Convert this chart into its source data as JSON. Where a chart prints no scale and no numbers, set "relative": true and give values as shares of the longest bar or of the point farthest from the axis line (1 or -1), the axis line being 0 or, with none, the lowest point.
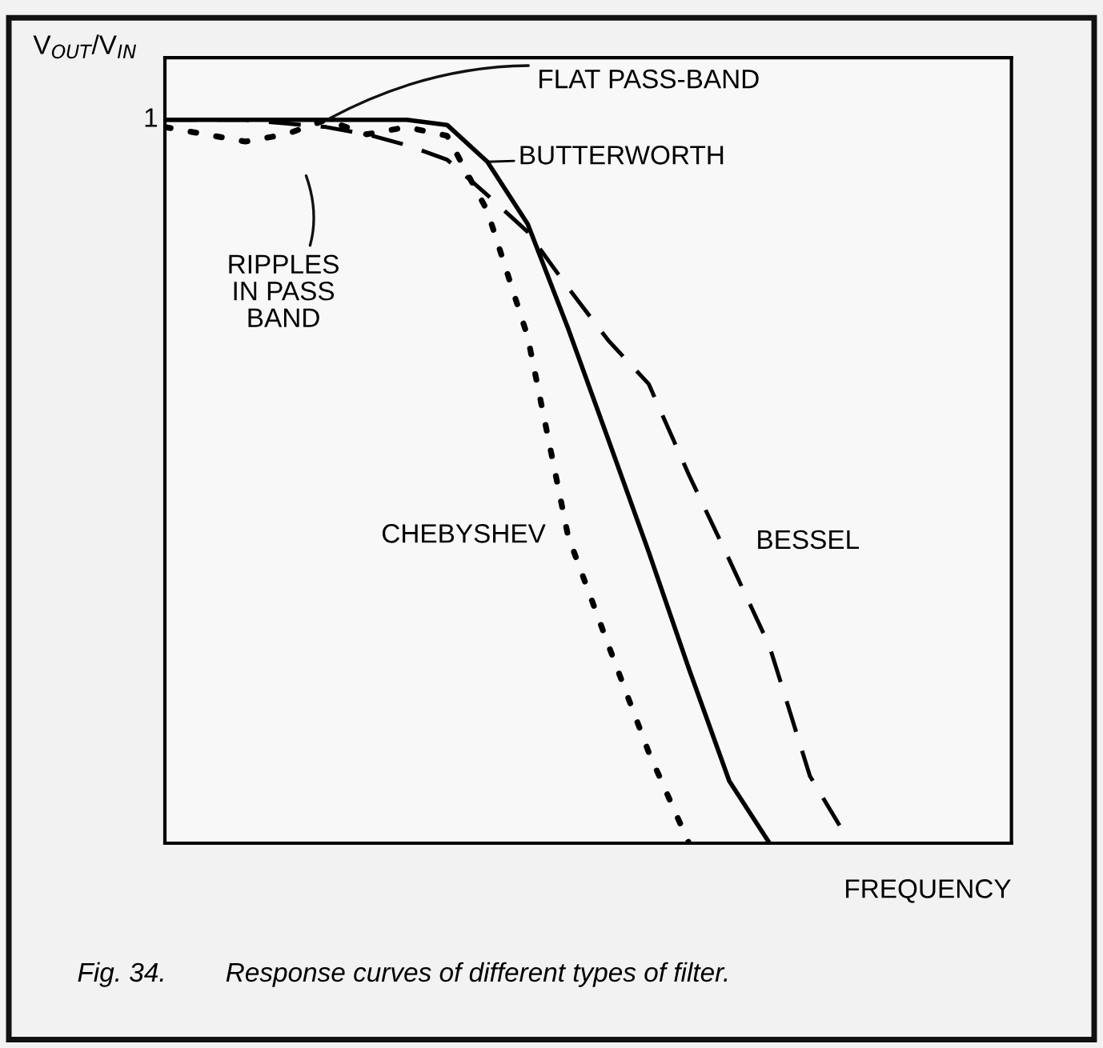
{
  "chart_data": {
    "type": "line",
    "relative": true,
    "xlabel": "FREQUENCY",
    "ylabel": "V$_{OUT}$/V$_{IN}$",
    "categories": [
      null,
      null,
      null,
      null,
      null,
      null,
      null,
      null,
      null,
      null,
      null,
      null,
      null,
      null,
      null,
      null,
      null,
      null,
      null,
      null,
      null,
      null
    ],
    "series": [
      {
        "name": "BUTTERWORTH",
        "color": "#000000",
        "line_style": "solid",
        "values": [
          1,
          1,
          1,
          1,
          1,
          1,
          1,
          0.993,
          0.942,
          0.856,
          0.712,
          0.558,
          0.403,
          0.241,
          0.086,
          0,
          null,
          null,
          null,
          null,
          null,
          null
        ]
      },
      {
        "name": "CHEBYSHEV",
        "color": "#000000",
        "line_style": "dotted",
        "values": [
          0.99,
          0.98,
          0.97,
          0.98,
          1,
          0.98,
          0.99,
          0.978,
          0.874,
          0.7,
          0.425,
          0.274,
          0.126,
          0,
          null,
          null,
          null,
          null,
          null,
          null,
          null,
          null
        ]
      },
      {
        "name": "BESSEL",
        "color": "#000000",
        "line_style": "dashed",
        "values": [
          1,
          1,
          1,
          0.995,
          0.99,
          0.98,
          0.965,
          0.945,
          0.896,
          0.845,
          0.768,
          0.695,
          0.635,
          0.509,
          0.392,
          0.272,
          0.093,
          0,
          null,
          null,
          null,
          null
        ]
      }
    ],
    "annotations": [
      "1",
      "FLAT PASS-BAND",
      "RIPPLES\nIN PASS\nBAND",
      "Fig. 34.        Response curves of different types of filter."
    ],
    "marker": "none"
  }
}
